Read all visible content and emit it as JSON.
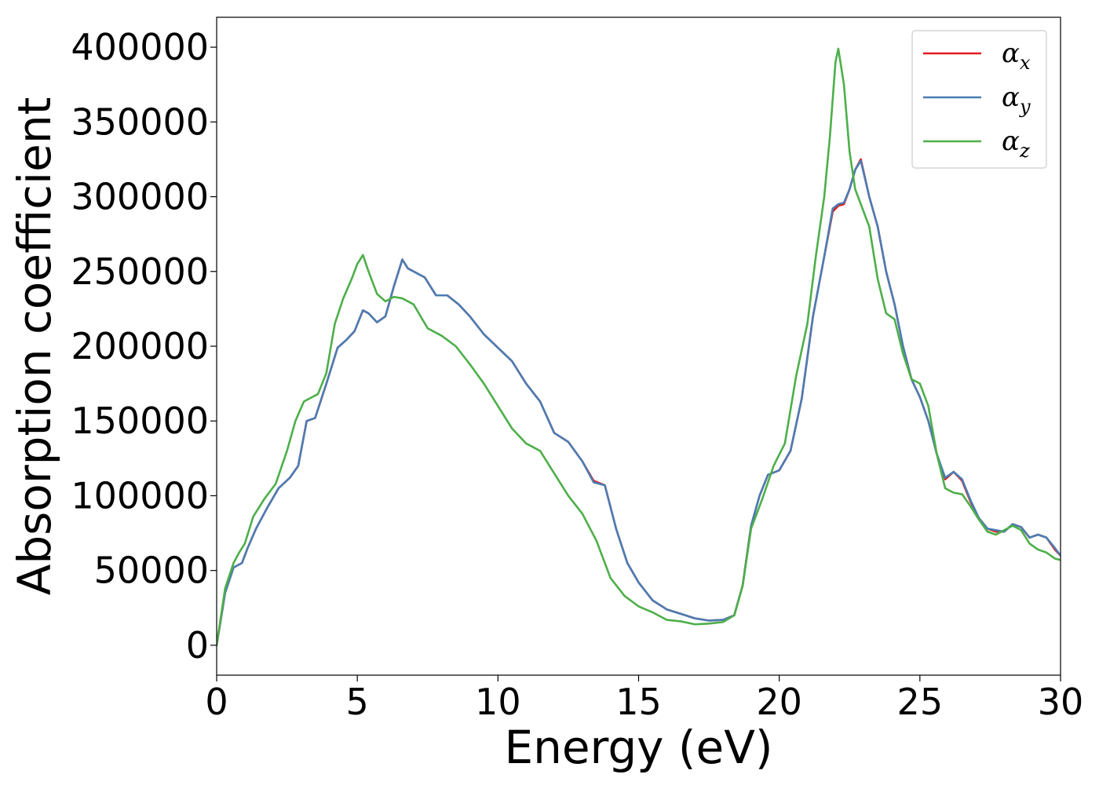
{
  "chart_data": {
    "type": "line",
    "title": "",
    "xlabel": "Energy (eV)",
    "ylabel": "Absorption coefficient",
    "xlim": [
      0,
      30
    ],
    "ylim": [
      -20000,
      420000
    ],
    "xticks": [
      0,
      5,
      10,
      15,
      20,
      25,
      30
    ],
    "xtick_labels": [
      "0",
      "5",
      "10",
      "15",
      "20",
      "25",
      "30"
    ],
    "yticks": [
      0,
      50000,
      100000,
      150000,
      200000,
      250000,
      300000,
      350000,
      400000
    ],
    "ytick_labels": [
      "0",
      "50000",
      "100000",
      "150000",
      "200000",
      "250000",
      "300000",
      "350000",
      "400000"
    ],
    "grid": false,
    "legend_position": "top-right",
    "series": [
      {
        "name": "α_x",
        "legend_symbol": "α",
        "legend_sub": "x",
        "color": "#e41a1c",
        "x": [
          0,
          0.3,
          0.6,
          0.9,
          1.1,
          1.4,
          1.8,
          2.2,
          2.6,
          2.9,
          3.2,
          3.5,
          3.9,
          4.3,
          4.6,
          4.9,
          5.2,
          5.4,
          5.7,
          6.0,
          6.3,
          6.6,
          6.8,
          7.0,
          7.4,
          7.8,
          8.2,
          8.6,
          9.0,
          9.5,
          10.0,
          10.5,
          11.0,
          11.5,
          12.0,
          12.5,
          13.0,
          13.4,
          13.8,
          14.2,
          14.6,
          15.0,
          15.5,
          16.0,
          16.5,
          17.0,
          17.5,
          18.0,
          18.4,
          18.7,
          19.0,
          19.3,
          19.6,
          20.0,
          20.4,
          20.8,
          21.2,
          21.6,
          21.9,
          22.1,
          22.3,
          22.5,
          22.7,
          22.9,
          23.2,
          23.5,
          23.8,
          24.1,
          24.4,
          24.7,
          25.0,
          25.3,
          25.6,
          25.9,
          26.2,
          26.5,
          26.8,
          27.1,
          27.4,
          27.7,
          28.0,
          28.3,
          28.6,
          28.9,
          29.2,
          29.5,
          29.8,
          30.0
        ],
        "y": [
          0,
          35000,
          52000,
          55000,
          65000,
          78000,
          92000,
          105000,
          112000,
          120000,
          150000,
          152000,
          175000,
          199000,
          204000,
          210000,
          224000,
          222000,
          216000,
          220000,
          240000,
          258000,
          252000,
          250000,
          246000,
          234000,
          234000,
          228000,
          220000,
          208000,
          199000,
          190000,
          175000,
          163000,
          142000,
          136000,
          123000,
          110000,
          107000,
          78000,
          55000,
          42000,
          30000,
          24000,
          21000,
          18000,
          16500,
          17000,
          20000,
          40000,
          80000,
          100000,
          114000,
          117000,
          130000,
          165000,
          220000,
          260000,
          290000,
          294000,
          295000,
          305000,
          318000,
          325000,
          300000,
          280000,
          250000,
          228000,
          200000,
          178000,
          166000,
          150000,
          128000,
          111000,
          116000,
          110000,
          96000,
          85000,
          78000,
          76000,
          76000,
          81000,
          79000,
          72000,
          74000,
          72000,
          64000,
          60000
        ]
      },
      {
        "name": "α_y",
        "legend_symbol": "α",
        "legend_sub": "y",
        "color": "#4a7db3",
        "x": [
          0,
          0.3,
          0.6,
          0.9,
          1.1,
          1.4,
          1.8,
          2.2,
          2.6,
          2.9,
          3.2,
          3.5,
          3.9,
          4.3,
          4.6,
          4.9,
          5.2,
          5.4,
          5.7,
          6.0,
          6.3,
          6.6,
          6.8,
          7.0,
          7.4,
          7.8,
          8.2,
          8.6,
          9.0,
          9.5,
          10.0,
          10.5,
          11.0,
          11.5,
          12.0,
          12.5,
          13.0,
          13.4,
          13.8,
          14.2,
          14.6,
          15.0,
          15.5,
          16.0,
          16.5,
          17.0,
          17.5,
          18.0,
          18.4,
          18.7,
          19.0,
          19.3,
          19.6,
          20.0,
          20.4,
          20.8,
          21.2,
          21.6,
          21.9,
          22.1,
          22.3,
          22.5,
          22.7,
          22.9,
          23.2,
          23.5,
          23.8,
          24.1,
          24.4,
          24.7,
          25.0,
          25.3,
          25.6,
          25.9,
          26.2,
          26.5,
          26.8,
          27.1,
          27.4,
          27.7,
          28.0,
          28.3,
          28.6,
          28.9,
          29.2,
          29.5,
          29.8,
          30.0
        ],
        "y": [
          0,
          35000,
          52000,
          55000,
          65000,
          78000,
          92000,
          105000,
          112000,
          120000,
          150000,
          152000,
          175000,
          199000,
          204000,
          210000,
          224000,
          222000,
          216000,
          220000,
          240000,
          258000,
          252000,
          250000,
          246000,
          234000,
          234000,
          228000,
          220000,
          208000,
          199000,
          190000,
          175000,
          163000,
          142000,
          136000,
          123000,
          109000,
          107000,
          78000,
          55000,
          42000,
          30000,
          24000,
          21000,
          18000,
          16500,
          17000,
          20000,
          40000,
          80000,
          100000,
          114000,
          117000,
          130000,
          165000,
          220000,
          260000,
          292000,
          295000,
          296000,
          305000,
          318000,
          324000,
          300000,
          280000,
          250000,
          228000,
          200000,
          178000,
          166000,
          150000,
          128000,
          112000,
          116000,
          111000,
          97000,
          85000,
          78000,
          77000,
          76000,
          81000,
          79000,
          72000,
          74000,
          72000,
          65000,
          60000
        ]
      },
      {
        "name": "α_z",
        "legend_symbol": "α",
        "legend_sub": "z",
        "color": "#4daf4a",
        "x": [
          0,
          0.3,
          0.6,
          0.8,
          1.0,
          1.3,
          1.7,
          2.1,
          2.5,
          2.8,
          3.1,
          3.3,
          3.6,
          3.9,
          4.2,
          4.5,
          4.8,
          5.0,
          5.2,
          5.4,
          5.7,
          6.0,
          6.3,
          6.6,
          7.0,
          7.5,
          8.0,
          8.5,
          9.0,
          9.5,
          10.0,
          10.5,
          11.0,
          11.5,
          12.0,
          12.5,
          13.0,
          13.5,
          14.0,
          14.5,
          15.0,
          15.5,
          16.0,
          16.5,
          17.0,
          17.5,
          18.0,
          18.4,
          18.7,
          19.0,
          19.4,
          19.8,
          20.2,
          20.6,
          21.0,
          21.3,
          21.6,
          21.8,
          22.0,
          22.1,
          22.3,
          22.5,
          22.7,
          22.9,
          23.2,
          23.5,
          23.8,
          24.1,
          24.4,
          24.7,
          25.0,
          25.3,
          25.6,
          25.9,
          26.2,
          26.5,
          26.8,
          27.1,
          27.4,
          27.7,
          28.0,
          28.3,
          28.6,
          28.9,
          29.2,
          29.5,
          29.8,
          30.0
        ],
        "y": [
          0,
          38000,
          55000,
          62000,
          68000,
          86000,
          98000,
          108000,
          130000,
          150000,
          163000,
          165000,
          168000,
          182000,
          215000,
          232000,
          245000,
          255000,
          261000,
          250000,
          235000,
          230000,
          233000,
          232000,
          228000,
          212000,
          207000,
          200000,
          188000,
          175000,
          160000,
          145000,
          135000,
          130000,
          115000,
          100000,
          88000,
          70000,
          45000,
          33000,
          26000,
          22000,
          17000,
          16000,
          14000,
          14500,
          15500,
          20000,
          40000,
          78000,
          98000,
          120000,
          135000,
          180000,
          215000,
          260000,
          300000,
          340000,
          390000,
          399000,
          375000,
          330000,
          305000,
          295000,
          280000,
          245000,
          222000,
          218000,
          195000,
          178000,
          175000,
          160000,
          128000,
          105000,
          102000,
          101000,
          93000,
          84000,
          76000,
          74000,
          77000,
          80000,
          77000,
          68000,
          64000,
          62000,
          58000,
          57000
        ]
      }
    ]
  }
}
